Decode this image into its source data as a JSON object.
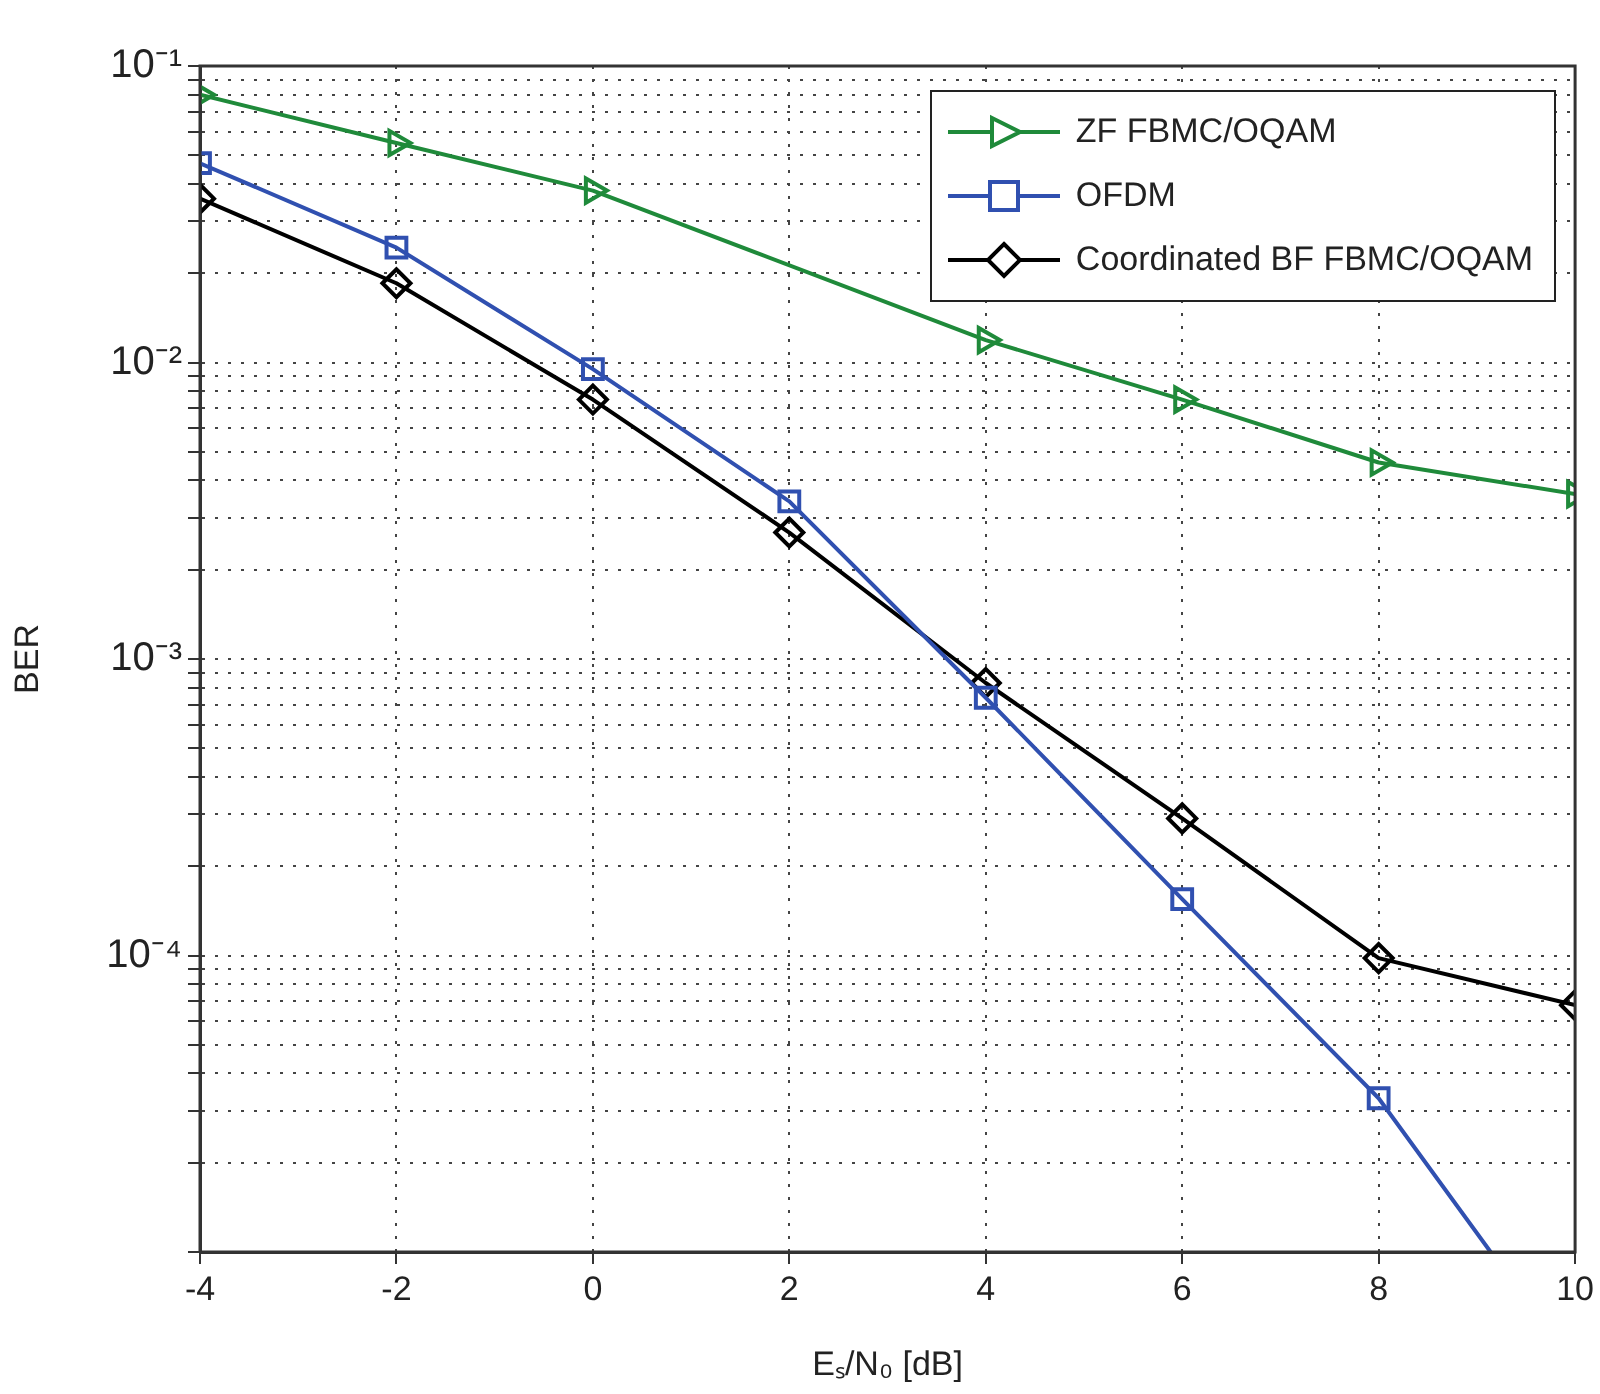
{
  "chart_data": {
    "type": "line",
    "xlabel": "Eₛ/N₀ [dB]",
    "ylabel": "BER",
    "log": "y",
    "grid": true,
    "line_style": "solid",
    "legend": "top right",
    "xlim": [
      -4,
      10
    ],
    "xticks": [
      -4,
      -2,
      0,
      2,
      4,
      6,
      8,
      10
    ],
    "ylim": [
      1e-05,
      0.1
    ],
    "yticks": [
      {
        "value": 1e-05,
        "label": null
      },
      {
        "value": 2e-05,
        "label": null
      },
      {
        "value": 3e-05,
        "label": null
      },
      {
        "value": 4e-05,
        "label": null
      },
      {
        "value": 5e-05,
        "label": null
      },
      {
        "value": 6e-05,
        "label": null
      },
      {
        "value": 7e-05,
        "label": null
      },
      {
        "value": 8e-05,
        "label": null
      },
      {
        "value": 9e-05,
        "label": null
      },
      {
        "value": 0.0001,
        "label": "10⁻⁴"
      },
      {
        "value": 0.0002,
        "label": null
      },
      {
        "value": 0.0003,
        "label": null
      },
      {
        "value": 0.0004,
        "label": null
      },
      {
        "value": 0.0005,
        "label": null
      },
      {
        "value": 0.0006,
        "label": null
      },
      {
        "value": 0.0007,
        "label": null
      },
      {
        "value": 0.0008,
        "label": null
      },
      {
        "value": 0.0009,
        "label": null
      },
      {
        "value": 0.001,
        "label": "10⁻³"
      },
      {
        "value": 0.002,
        "label": null
      },
      {
        "value": 0.003,
        "label": null
      },
      {
        "value": 0.004,
        "label": null
      },
      {
        "value": 0.005,
        "label": null
      },
      {
        "value": 0.006,
        "label": null
      },
      {
        "value": 0.007,
        "label": null
      },
      {
        "value": 0.008,
        "label": null
      },
      {
        "value": 0.009,
        "label": null
      },
      {
        "value": 0.01,
        "label": "10⁻²"
      },
      {
        "value": 0.02,
        "label": null
      },
      {
        "value": 0.03,
        "label": null
      },
      {
        "value": 0.04,
        "label": null
      },
      {
        "value": 0.05,
        "label": null
      },
      {
        "value": 0.06,
        "label": null
      },
      {
        "value": 0.07,
        "label": null
      },
      {
        "value": 0.08,
        "label": null
      },
      {
        "value": 0.09,
        "label": null
      },
      {
        "value": 0.1,
        "label": "10⁻¹"
      }
    ],
    "x": [
      -4,
      -2,
      0,
      2,
      4,
      6,
      8,
      10
    ],
    "series": [
      {
        "name": "ZF FBMC/OQAM",
        "color": "#1f8a3a",
        "marker": "triangle",
        "values": [
          0.08,
          0.055,
          0.038,
          null,
          0.0119,
          0.0075,
          0.0046,
          0.0036
        ]
      },
      {
        "name": "OFDM",
        "color": "#3050b0",
        "marker": "square",
        "x": [
          -4,
          -2,
          0,
          2,
          4,
          6,
          8,
          9.14
        ],
        "values": [
          0.047,
          0.0244,
          0.0095,
          0.0034,
          0.00074,
          0.000155,
          3.3e-05,
          1e-05
        ]
      },
      {
        "name": "Coordinated BF FBMC/OQAM",
        "color": "#000000",
        "marker": "diamond",
        "values": [
          0.0357,
          0.0185,
          0.0075,
          0.00267,
          0.00083,
          0.00029,
          9.8e-05,
          6.8e-05
        ]
      }
    ]
  }
}
